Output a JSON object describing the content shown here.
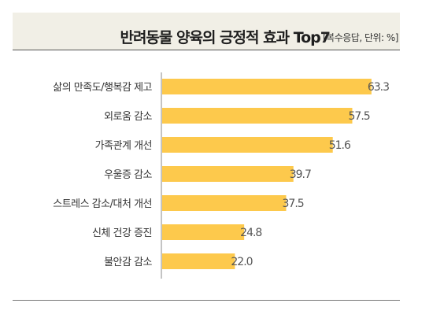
{
  "header": {
    "title": "반려동물 양육의 긍정적 효과 Top7",
    "unit_note": "[복수응답, 단위: %]"
  },
  "colors": {
    "bar": "#fdc94c",
    "header_bg": "#f1efe6",
    "axis": "#888888"
  },
  "chart_data": {
    "type": "bar",
    "orientation": "horizontal",
    "title": "반려동물 양육의 긍정적 효과 Top7",
    "categories": [
      "삶의 만족도/행복감 제고",
      "외로움 감소",
      "가족관계 개선",
      "우울증 감소",
      "스트레스 감소/대처 개선",
      "신체 건강 증진",
      "불안감 감소"
    ],
    "values": [
      63.3,
      57.5,
      51.6,
      39.7,
      37.5,
      24.8,
      22.0
    ],
    "value_labels": [
      "63.3",
      "57.5",
      "51.6",
      "39.7",
      "37.5",
      "24.8",
      "22.0"
    ],
    "xlim": [
      0,
      70
    ],
    "grid": false,
    "legend": "none"
  }
}
